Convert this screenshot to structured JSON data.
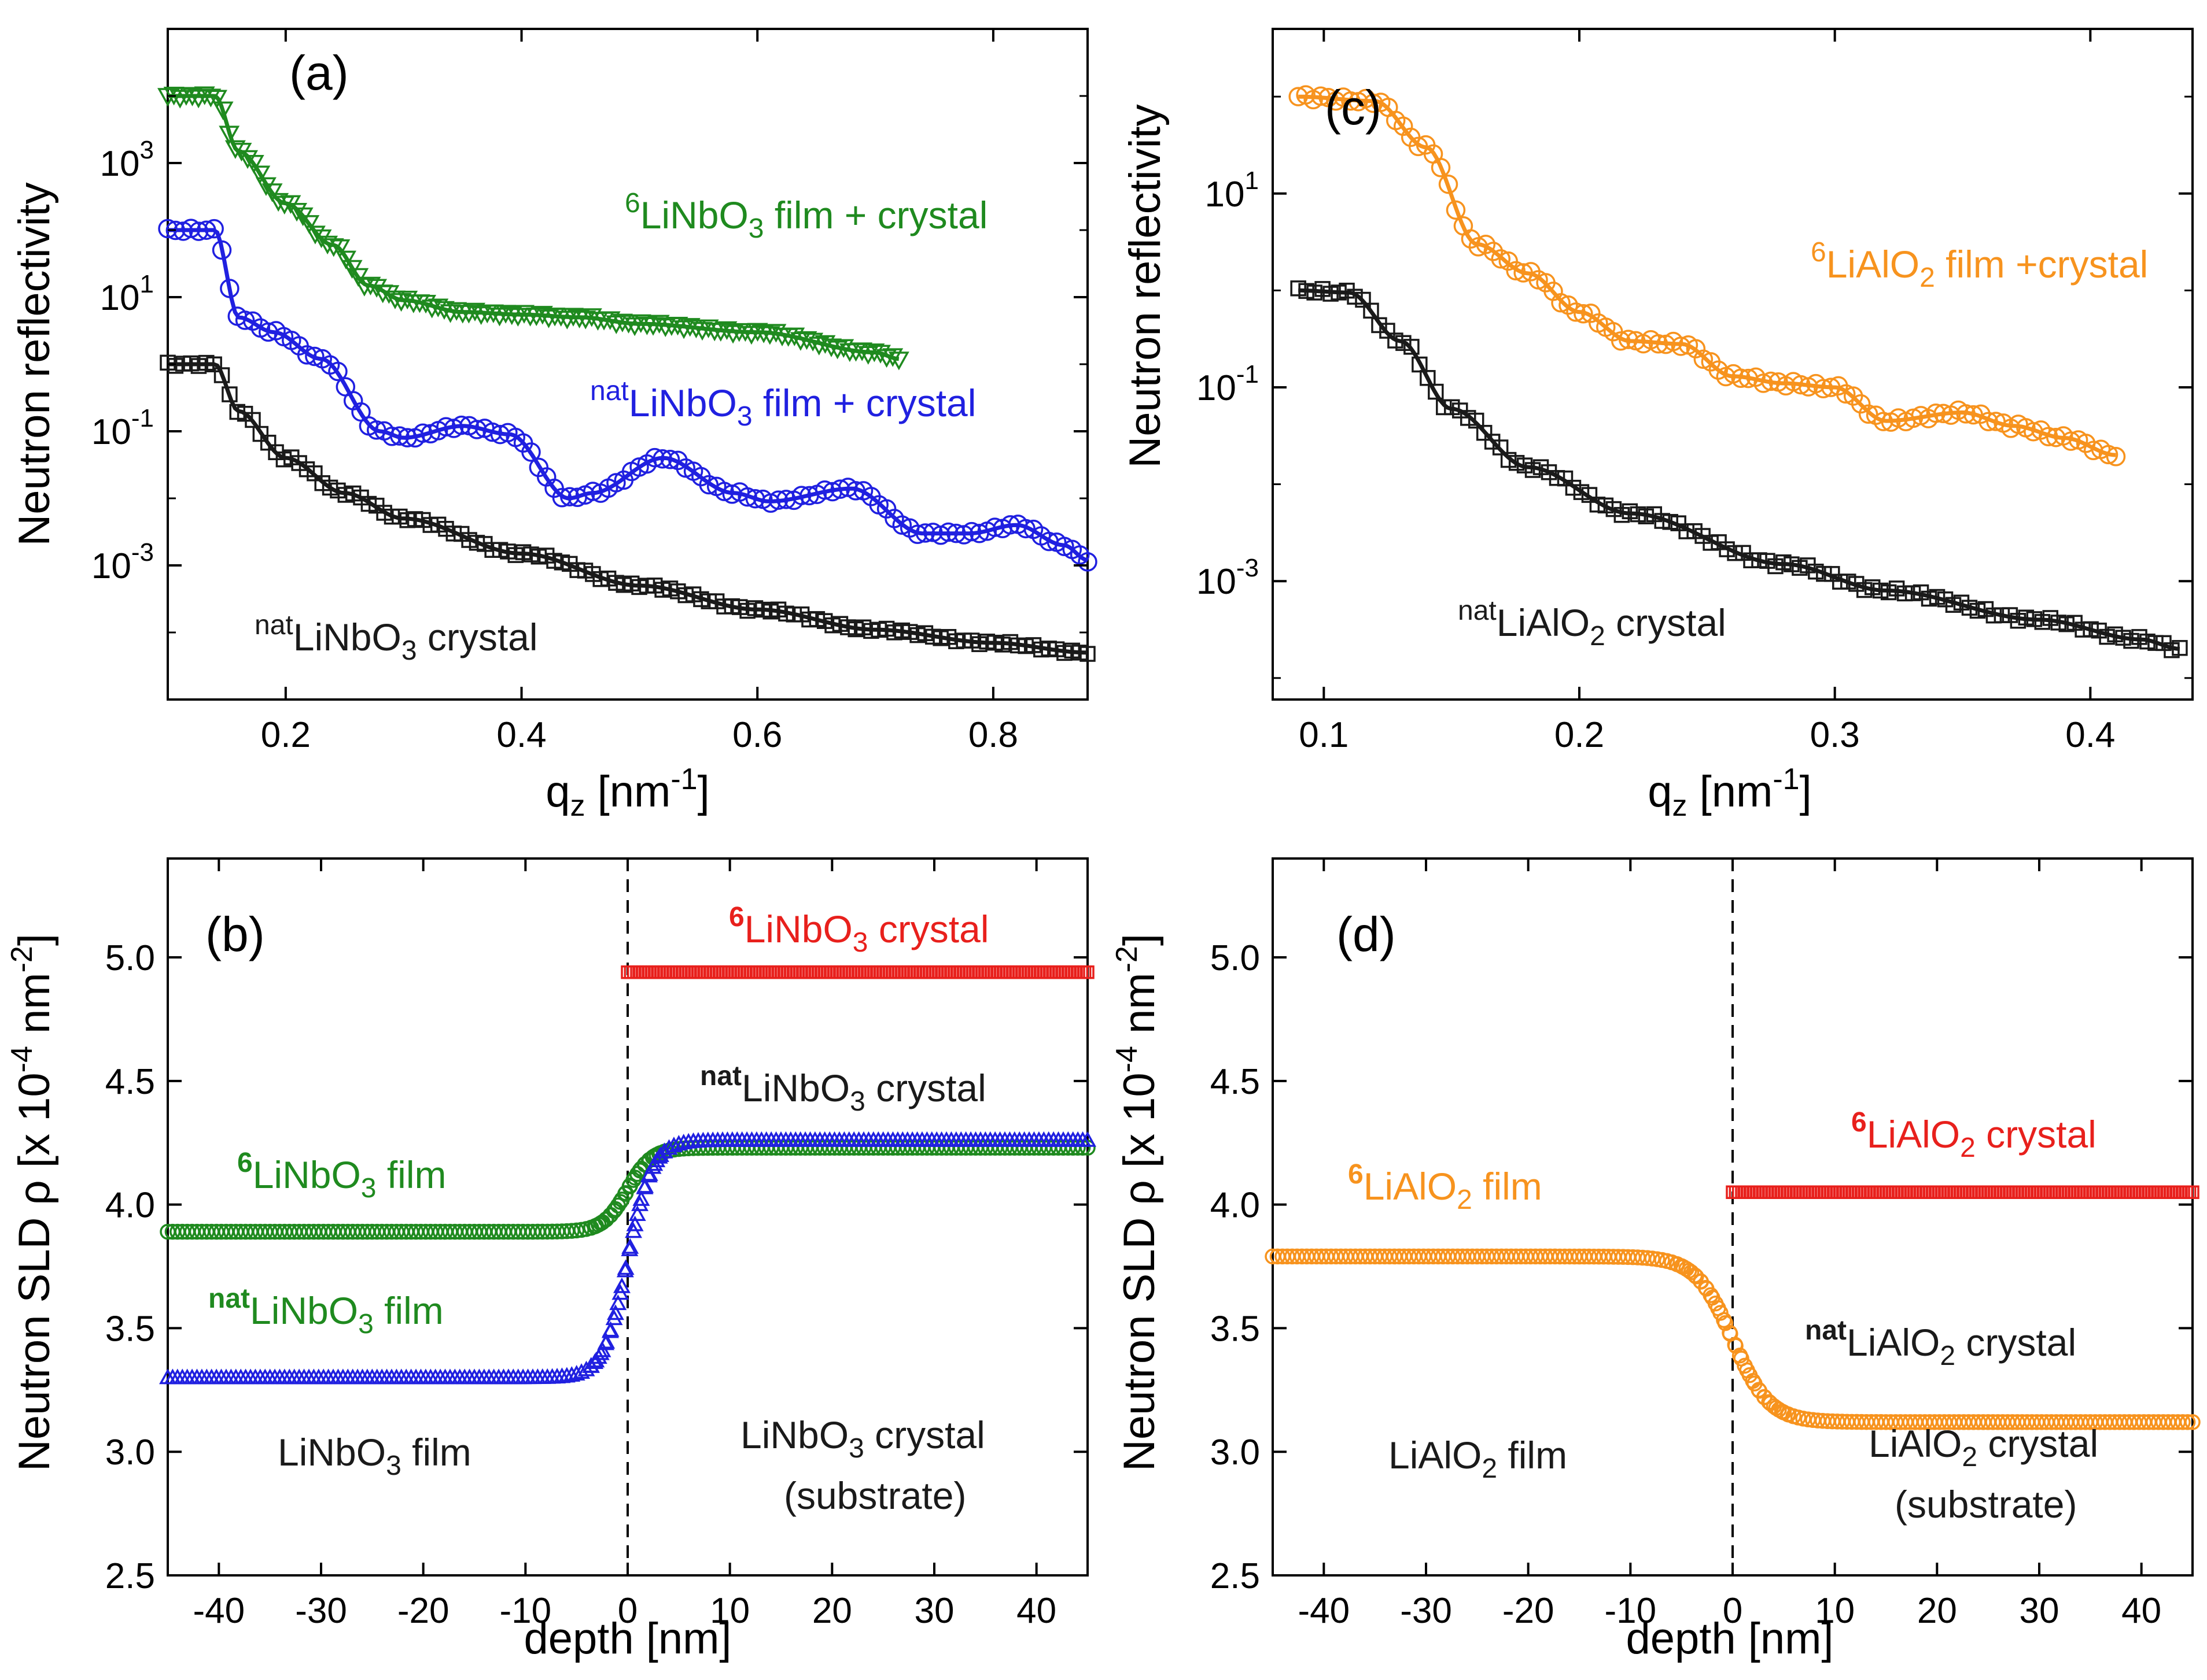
{
  "colors": {
    "green": "#1f8a1f",
    "blue": "#2020e0",
    "black": "#1a1a1a",
    "orange": "#f7931e",
    "red": "#e8201c"
  },
  "chart_data": [
    {
      "id": "a",
      "panel_label": "(a)",
      "type": "scatter",
      "yscale": "log",
      "xlabel": {
        "base": "q",
        "sub": "z",
        "rest": " [nm",
        "sup": "-1",
        "end": "]"
      },
      "ylabel": "Neutron reflectivity",
      "xlim": [
        0.1,
        0.88
      ],
      "ylim": [
        1e-05,
        100000
      ],
      "xticks": [
        0.2,
        0.4,
        0.6,
        0.8
      ],
      "xtick_labels": [
        "0.2",
        "0.4",
        "0.6",
        "0.8"
      ],
      "yticks": [
        0.001,
        0.1,
        10,
        1000
      ],
      "ytick_labels": [
        {
          "base": "10",
          "sup": "-3"
        },
        {
          "base": "10",
          "sup": "-1"
        },
        {
          "base": "10",
          "sup": "1"
        },
        {
          "base": "10",
          "sup": "3"
        }
      ],
      "series": [
        {
          "name": "6LiNbO3 film + crystal",
          "color": "green",
          "marker": "triangle-down",
          "x_end": 0.72,
          "label": [
            {
              "t": "6",
              "s": "sup"
            },
            {
              "t": "LiNbO"
            },
            {
              "t": "3",
              "s": "sub"
            },
            {
              "t": " film + crystal"
            }
          ],
          "values": [
            [
              0.1,
              10000
            ],
            [
              0.14,
              10000
            ],
            [
              0.16,
              1500
            ],
            [
              0.2,
              250
            ],
            [
              0.24,
              60
            ],
            [
              0.27,
              15
            ],
            [
              0.3,
              9
            ],
            [
              0.35,
              6
            ],
            [
              0.4,
              5.5
            ],
            [
              0.45,
              5
            ],
            [
              0.5,
              4
            ],
            [
              0.6,
              3
            ],
            [
              0.7,
              1.5
            ],
            [
              0.72,
              1.2
            ]
          ]
        },
        {
          "name": "natLiNbO3 film + crystal",
          "color": "blue",
          "marker": "circle",
          "x_end": 0.88,
          "label": [
            {
              "t": "nat",
              "s": "sup"
            },
            {
              "t": "LiNbO"
            },
            {
              "t": "3",
              "s": "sub"
            },
            {
              "t": " film + crystal"
            }
          ],
          "values": [
            [
              0.1,
              100
            ],
            [
              0.14,
              100
            ],
            [
              0.16,
              5
            ],
            [
              0.19,
              3
            ],
            [
              0.23,
              1.2
            ],
            [
              0.28,
              0.1
            ],
            [
              0.3,
              0.08
            ],
            [
              0.35,
              0.12
            ],
            [
              0.39,
              0.09
            ],
            [
              0.44,
              0.01
            ],
            [
              0.46,
              0.012
            ],
            [
              0.52,
              0.04
            ],
            [
              0.58,
              0.012
            ],
            [
              0.61,
              0.009
            ],
            [
              0.68,
              0.014
            ],
            [
              0.74,
              0.003
            ],
            [
              0.78,
              0.003
            ],
            [
              0.82,
              0.004
            ],
            [
              0.86,
              0.002
            ],
            [
              0.88,
              0.0012
            ]
          ]
        },
        {
          "name": "natLiNbO3 crystal",
          "color": "black",
          "marker": "square",
          "x_end": 0.88,
          "label": [
            {
              "t": "nat",
              "s": "sup"
            },
            {
              "t": "LiNbO"
            },
            {
              "t": "3",
              "s": "sub"
            },
            {
              "t": " crystal"
            }
          ],
          "values": [
            [
              0.1,
              1
            ],
            [
              0.14,
              1
            ],
            [
              0.16,
              0.2
            ],
            [
              0.2,
              0.04
            ],
            [
              0.25,
              0.012
            ],
            [
              0.3,
              0.005
            ],
            [
              0.4,
              0.0015
            ],
            [
              0.5,
              0.0005
            ],
            [
              0.6,
              0.00022
            ],
            [
              0.7,
              0.00011
            ],
            [
              0.8,
              7e-05
            ],
            [
              0.88,
              5e-05
            ]
          ]
        }
      ]
    },
    {
      "id": "c",
      "panel_label": "(c)",
      "type": "scatter",
      "yscale": "log",
      "xlabel": {
        "base": "q",
        "sub": "z",
        "rest": " [nm",
        "sup": "-1",
        "end": "]"
      },
      "ylabel": "Neutron reflectivity",
      "xlim": [
        0.08,
        0.44
      ],
      "ylim": [
        6e-05,
        500
      ],
      "xticks": [
        0.1,
        0.2,
        0.3,
        0.4
      ],
      "xtick_labels": [
        "0.1",
        "0.2",
        "0.3",
        "0.4"
      ],
      "yticks": [
        0.001,
        0.1,
        10
      ],
      "ytick_labels": [
        {
          "base": "10",
          "sup": "-3"
        },
        {
          "base": "10",
          "sup": "-1"
        },
        {
          "base": "10",
          "sup": "1"
        }
      ],
      "series": [
        {
          "name": "6LiAlO2 film +crystal",
          "color": "orange",
          "marker": "circle",
          "x_end": 0.41,
          "label": [
            {
              "t": "6",
              "s": "sup"
            },
            {
              "t": "LiAlO"
            },
            {
              "t": "2",
              "s": "sub"
            },
            {
              "t": " film +crystal"
            }
          ],
          "values": [
            [
              0.09,
              100
            ],
            [
              0.12,
              90
            ],
            [
              0.14,
              30
            ],
            [
              0.16,
              3
            ],
            [
              0.18,
              1.5
            ],
            [
              0.2,
              0.6
            ],
            [
              0.22,
              0.3
            ],
            [
              0.24,
              0.28
            ],
            [
              0.26,
              0.13
            ],
            [
              0.28,
              0.11
            ],
            [
              0.3,
              0.1
            ],
            [
              0.32,
              0.045
            ],
            [
              0.35,
              0.055
            ],
            [
              0.37,
              0.04
            ],
            [
              0.39,
              0.03
            ],
            [
              0.41,
              0.02
            ]
          ]
        },
        {
          "name": "natLiAlO2 crystal",
          "color": "black",
          "marker": "square",
          "x_end": 0.435,
          "label": [
            {
              "t": "nat",
              "s": "sup"
            },
            {
              "t": "LiAlO"
            },
            {
              "t": "2",
              "s": "sub"
            },
            {
              "t": " crystal"
            }
          ],
          "values": [
            [
              0.09,
              1
            ],
            [
              0.11,
              0.95
            ],
            [
              0.13,
              0.3
            ],
            [
              0.15,
              0.06
            ],
            [
              0.18,
              0.015
            ],
            [
              0.22,
              0.005
            ],
            [
              0.28,
              0.0015
            ],
            [
              0.32,
              0.0008
            ],
            [
              0.38,
              0.0004
            ],
            [
              0.42,
              0.00025
            ],
            [
              0.435,
              0.0002
            ]
          ]
        }
      ]
    },
    {
      "id": "b",
      "panel_label": "(b)",
      "type": "line",
      "yscale": "linear",
      "xlabel": {
        "base": "depth [nm]"
      },
      "ylabel": {
        "pre": "Neutron SLD ρ [x 10",
        "sup": "-4",
        "mid": " nm",
        "sup2": "-2",
        "end": "]"
      },
      "xlim": [
        -45,
        45
      ],
      "ylim": [
        2.5,
        5.4
      ],
      "xticks": [
        -40,
        -30,
        -20,
        -10,
        0,
        10,
        20,
        30,
        40
      ],
      "xtick_labels": [
        "-40",
        "-30",
        "-20",
        "-10",
        "0",
        "10",
        "20",
        "30",
        "40"
      ],
      "yticks": [
        2.5,
        3.0,
        3.5,
        4.0,
        4.5,
        5.0
      ],
      "ytick_labels": [
        "2.5",
        "3.0",
        "3.5",
        "4.0",
        "4.5",
        "5.0"
      ],
      "interface_x": 0,
      "series": [
        {
          "name": "6LiNbO3 crystal",
          "color": "red",
          "marker": "square",
          "x_start": 0,
          "values_step": {
            "left": null,
            "right": 4.94
          }
        },
        {
          "name": "6LiNbO3 film",
          "color": "green",
          "marker": "circle",
          "values_step": {
            "left": 3.89,
            "right": 4.23
          },
          "width_nm": 1.2
        },
        {
          "name": "natLiNbO3 film",
          "color": "blue",
          "marker": "triangle-up",
          "values_step": {
            "left": 3.3,
            "right": 4.26
          },
          "width_nm": 1.2
        }
      ],
      "annotations": [
        {
          "color": "red",
          "parts": [
            {
              "t": "6",
              "s": "sup",
              "b": true
            },
            {
              "t": "LiNbO"
            },
            {
              "t": "3",
              "s": "sub"
            },
            {
              "t": " crystal"
            }
          ]
        },
        {
          "color": "black",
          "parts": [
            {
              "t": "nat",
              "s": "sup",
              "b": true
            },
            {
              "t": "LiNbO"
            },
            {
              "t": "3",
              "s": "sub"
            },
            {
              "t": " crystal"
            }
          ]
        },
        {
          "color": "green",
          "parts": [
            {
              "t": "6",
              "s": "sup",
              "b": true
            },
            {
              "t": "LiNbO"
            },
            {
              "t": "3",
              "s": "sub"
            },
            {
              "t": " film"
            }
          ]
        },
        {
          "color": "green",
          "parts": [
            {
              "t": "nat",
              "s": "sup",
              "b": true
            },
            {
              "t": "LiNbO"
            },
            {
              "t": "3",
              "s": "sub"
            },
            {
              "t": " film"
            }
          ]
        },
        {
          "color": "black",
          "parts": [
            {
              "t": "LiNbO"
            },
            {
              "t": "3",
              "s": "sub"
            },
            {
              "t": " film"
            }
          ]
        },
        {
          "color": "black",
          "parts": [
            {
              "t": "LiNbO"
            },
            {
              "t": "3",
              "s": "sub"
            },
            {
              "t": " crystal"
            }
          ]
        },
        {
          "color": "black",
          "parts": [
            {
              "t": "(substrate)"
            }
          ]
        }
      ]
    },
    {
      "id": "d",
      "panel_label": "(d)",
      "type": "line",
      "yscale": "linear",
      "xlabel": {
        "base": "depth [nm]"
      },
      "ylabel": {
        "pre": "Neutron SLD ρ [x 10",
        "sup": "-4",
        "mid": " nm",
        "sup2": "-2",
        "end": "]"
      },
      "xlim": [
        -45,
        45
      ],
      "ylim": [
        2.5,
        5.4
      ],
      "xticks": [
        -40,
        -30,
        -20,
        -10,
        0,
        10,
        20,
        30,
        40
      ],
      "xtick_labels": [
        "-40",
        "-30",
        "-20",
        "-10",
        "0",
        "10",
        "20",
        "30",
        "40"
      ],
      "yticks": [
        2.5,
        3.0,
        3.5,
        4.0,
        4.5,
        5.0
      ],
      "ytick_labels": [
        "2.5",
        "3.0",
        "3.5",
        "4.0",
        "4.5",
        "5.0"
      ],
      "interface_x": 0,
      "series": [
        {
          "name": "6LiAlO2 crystal",
          "color": "red",
          "marker": "square",
          "x_start": 0,
          "values_step": {
            "left": null,
            "right": 4.05
          }
        },
        {
          "name": "6LiAlO2 film",
          "color": "orange",
          "marker": "circle",
          "values_step": {
            "left": 3.79,
            "right": 3.12
          },
          "width_nm": 1.8
        }
      ],
      "annotations": [
        {
          "color": "red",
          "parts": [
            {
              "t": "6",
              "s": "sup",
              "b": true
            },
            {
              "t": "LiAlO"
            },
            {
              "t": "2",
              "s": "sub"
            },
            {
              "t": " crystal"
            }
          ]
        },
        {
          "color": "orange",
          "parts": [
            {
              "t": "6",
              "s": "sup",
              "b": true
            },
            {
              "t": "LiAlO"
            },
            {
              "t": "2",
              "s": "sub"
            },
            {
              "t": " film"
            }
          ]
        },
        {
          "color": "black",
          "parts": [
            {
              "t": "nat",
              "s": "sup",
              "b": true
            },
            {
              "t": "LiAlO"
            },
            {
              "t": "2",
              "s": "sub"
            },
            {
              "t": " crystal"
            }
          ]
        },
        {
          "color": "black",
          "parts": [
            {
              "t": "LiAlO"
            },
            {
              "t": "2",
              "s": "sub"
            },
            {
              "t": " film"
            }
          ]
        },
        {
          "color": "black",
          "parts": [
            {
              "t": "LiAlO"
            },
            {
              "t": "2",
              "s": "sub"
            },
            {
              "t": " crystal"
            }
          ]
        },
        {
          "color": "black",
          "parts": [
            {
              "t": "(substrate)"
            }
          ]
        }
      ]
    }
  ]
}
